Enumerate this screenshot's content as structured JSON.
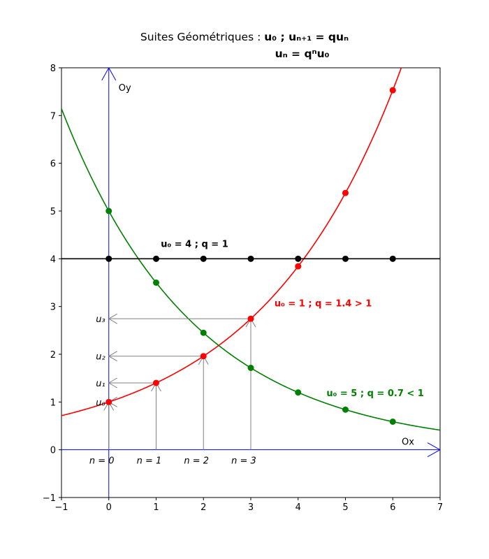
{
  "title": {
    "prefix": "Suites Géométriques : ",
    "rule1": "u₀ ;  uₙ₊₁ = quₙ",
    "rule2": "uₙ = qⁿu₀"
  },
  "chart_data": {
    "type": "line",
    "xlim": [
      -1,
      7
    ],
    "ylim": [
      -1,
      8
    ],
    "xticks": [
      -1,
      0,
      1,
      2,
      3,
      4,
      5,
      6,
      7
    ],
    "yticks": [
      -1,
      0,
      1,
      2,
      3,
      4,
      5,
      6,
      7,
      8
    ],
    "xlabel": "Ox",
    "ylabel": "Oy",
    "grid": false,
    "series": [
      {
        "name": "u₀ = 1 ;  q = 1.4 > 1",
        "u0": 1,
        "q": 1.4,
        "color": "#ff0000",
        "x": [
          0,
          1,
          2,
          3,
          4,
          5,
          6
        ],
        "y": [
          1,
          1.4,
          1.96,
          2.744,
          3.8416,
          5.37824,
          7.529536
        ]
      },
      {
        "name": "u₀ = 5 ;  q = 0.7 < 1",
        "u0": 5,
        "q": 0.7,
        "color": "#008000",
        "x": [
          0,
          1,
          2,
          3,
          4,
          5,
          6
        ],
        "y": [
          5,
          3.5,
          2.45,
          1.715,
          1.2005,
          0.84035,
          0.588245
        ]
      },
      {
        "name": "u₀ = 4 ;  q = 1",
        "u0": 4,
        "q": 1,
        "color": "#000000",
        "x": [
          0,
          1,
          2,
          3,
          4,
          5,
          6
        ],
        "y": [
          4,
          4,
          4,
          4,
          4,
          4,
          4
        ]
      }
    ],
    "annotations": {
      "n_labels": [
        "n = 0",
        "n = 1",
        "n = 2",
        "n = 3"
      ],
      "u_labels": [
        "u₀",
        "u₁",
        "u₂",
        "u₃"
      ],
      "arrow_color": "#808080",
      "axis_color": "#0000ff"
    }
  }
}
